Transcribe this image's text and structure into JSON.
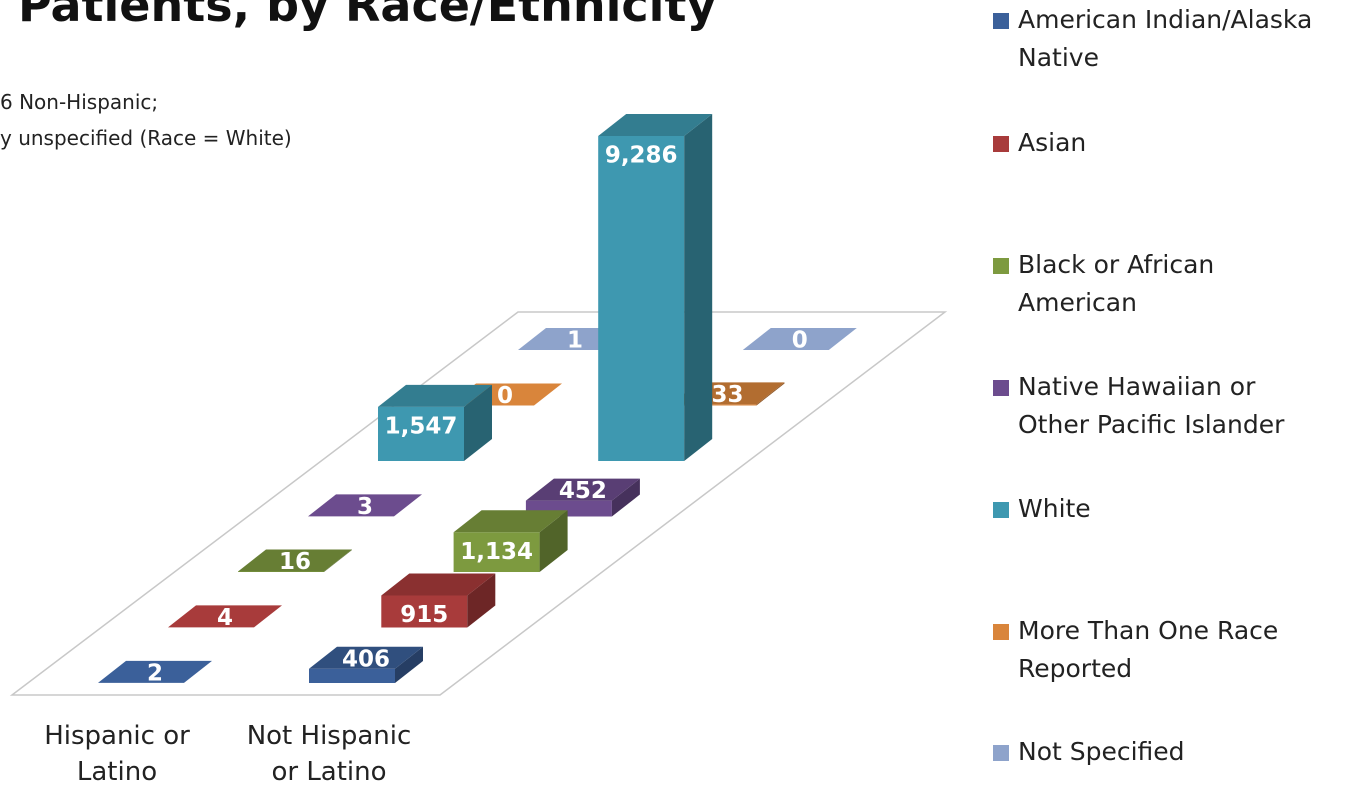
{
  "chart_data": {
    "type": "bar3d",
    "title": "Patients, by Race/Ethnicity",
    "annotations": [
      "6 Non-Hispanic;",
      "y unspecified (Race = White)"
    ],
    "categories": [
      "Hispanic or Latino",
      "Not Hispanic or Latino"
    ],
    "series": [
      {
        "name": "American Indian/Alaska Native",
        "color": "#3b609a",
        "values": [
          2,
          406
        ]
      },
      {
        "name": "Asian",
        "color": "#a83b3b",
        "values": [
          4,
          915
        ]
      },
      {
        "name": "Black or African American",
        "color": "#7d9a3f",
        "values": [
          16,
          1134
        ],
        "value_labels": [
          "16",
          "1,134"
        ]
      },
      {
        "name": "Native Hawaiian or Other Pacific Islander",
        "color": "#6c4c8e",
        "values": [
          3,
          452
        ]
      },
      {
        "name": "White",
        "color": "#3e98b0",
        "values": [
          1547,
          9286
        ],
        "value_labels": [
          "1,547",
          "9,286"
        ]
      },
      {
        "name": "More Than One Race Reported",
        "color": "#d9853b",
        "values": [
          0,
          33
        ]
      },
      {
        "name": "Not Specified",
        "color": "#8ea3cb",
        "values": [
          1,
          0
        ]
      }
    ],
    "legend": "right"
  }
}
